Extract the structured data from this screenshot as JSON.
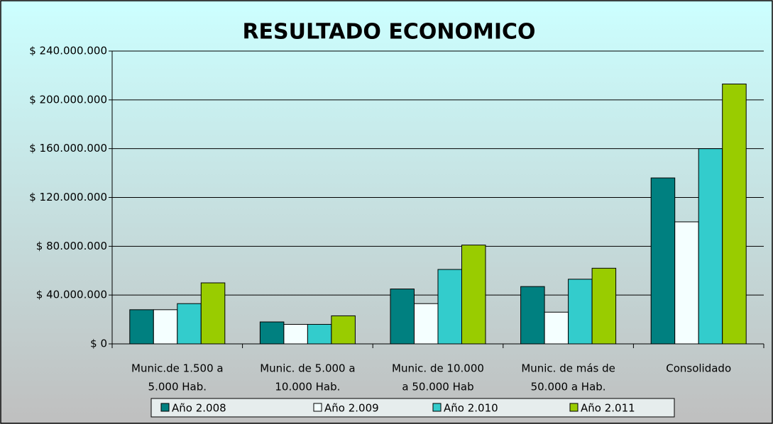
{
  "chart_data": {
    "type": "bar",
    "title": "RESULTADO ECONOMICO",
    "categories": [
      [
        "Munic.de 1.500 a",
        "5.000 Hab."
      ],
      [
        "Munic. de 5.000 a",
        "10.000 Hab."
      ],
      [
        "Munic. de 10.000",
        "a 50.000 Hab"
      ],
      [
        "Munic. de más de",
        "50.000 a Hab."
      ],
      [
        "Consolidado"
      ]
    ],
    "series": [
      {
        "name": "Año 2.008",
        "color": "#008080",
        "values": [
          28000000,
          18000000,
          45000000,
          47000000,
          136000000
        ]
      },
      {
        "name": "Año 2.009",
        "color": "#f4ffff",
        "values": [
          28000000,
          16000000,
          33000000,
          26000000,
          100000000
        ]
      },
      {
        "name": "Año 2.010",
        "color": "#33cccc",
        "values": [
          33000000,
          16000000,
          61000000,
          53000000,
          160000000
        ]
      },
      {
        "name": "Año 2.011",
        "color": "#99cc00",
        "values": [
          50000000,
          23000000,
          81000000,
          62000000,
          213000000
        ]
      }
    ],
    "ylim": [
      0,
      240000000
    ],
    "yticks": [
      {
        "value": 0,
        "label": "$ 0"
      },
      {
        "value": 40000000,
        "label": "$ 40.000.000"
      },
      {
        "value": 80000000,
        "label": "$ 80.000.000"
      },
      {
        "value": 120000000,
        "label": "$ 120.000.000"
      },
      {
        "value": 160000000,
        "label": "$ 160.000.000"
      },
      {
        "value": 200000000,
        "label": "$ 200.000.000"
      },
      {
        "value": 240000000,
        "label": "$ 240.000.000"
      }
    ],
    "grid": true,
    "legend": "bottom"
  }
}
